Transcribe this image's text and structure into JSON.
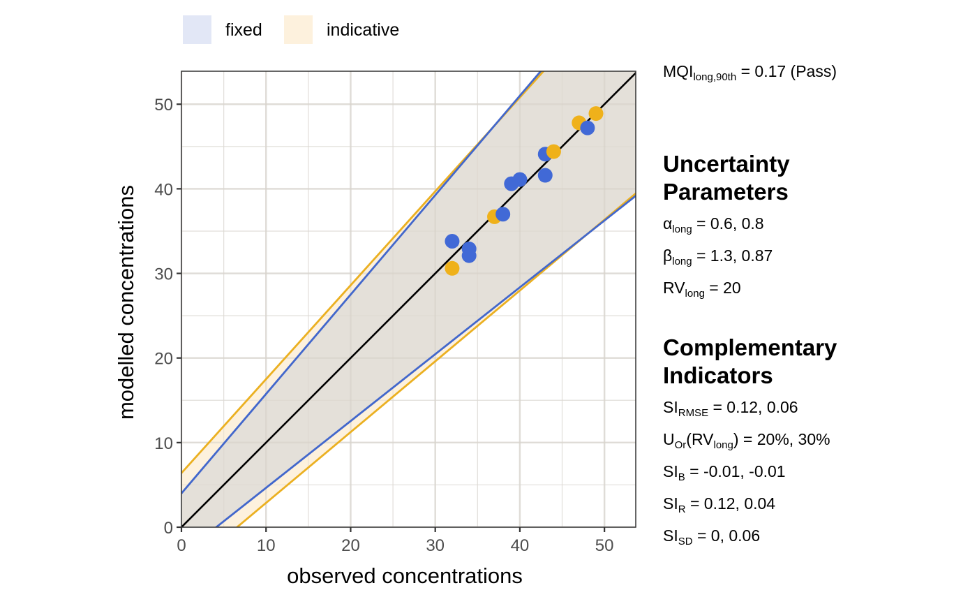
{
  "chart_data": {
    "type": "scatter",
    "title": "",
    "xlabel": "observed concentrations",
    "ylabel": "modelled concentrations",
    "xlim": [
      0,
      53.7
    ],
    "ylim": [
      0,
      53.9
    ],
    "xticks": [
      0,
      10,
      20,
      30,
      40,
      50
    ],
    "yticks": [
      0,
      10,
      20,
      30,
      40,
      50
    ],
    "grid": true,
    "legend": {
      "position": "top-left",
      "entries": [
        {
          "name": "fixed",
          "color": "#e2e7f6"
        },
        {
          "name": "indicative",
          "color": "#fdf1dd"
        }
      ]
    },
    "identity_line": {
      "color": "#000000"
    },
    "bands": [
      {
        "name": "indicative",
        "line_color": "#ebb021",
        "fill": "#fdf1dd",
        "upper_intercept": 6.4,
        "upper_slope": 1.11,
        "lower_intercept": -5.5,
        "lower_slope": 0.837
      },
      {
        "name": "fixed",
        "line_color": "#4267cc",
        "fill": "#e4e0d9",
        "upper_intercept": 4.0,
        "upper_slope": 1.175,
        "lower_intercept": -3.25,
        "lower_slope": 0.79
      }
    ],
    "series": [
      {
        "name": "fixed",
        "color": "#4169d6",
        "points": [
          [
            32,
            33.8
          ],
          [
            34,
            32.9
          ],
          [
            34,
            32.1
          ],
          [
            38,
            37.0
          ],
          [
            39,
            40.6
          ],
          [
            40,
            41.1
          ],
          [
            43,
            44.1
          ],
          [
            43,
            41.6
          ],
          [
            48,
            47.2
          ]
        ]
      },
      {
        "name": "indicative",
        "color": "#efb11a",
        "points": [
          [
            32,
            30.6
          ],
          [
            37,
            36.7
          ],
          [
            44,
            44.4
          ],
          [
            47,
            47.8
          ],
          [
            49,
            48.9
          ]
        ]
      }
    ]
  },
  "side": {
    "mqi": {
      "main": "MQI",
      "sub": "long,90th",
      "value": " = 0.17 (Pass)"
    },
    "uncertainty_title_1": "Uncertainty",
    "uncertainty_title_2": "Parameters",
    "alpha": {
      "main": "α",
      "sub": "long",
      "value": " = 0.6, 0.8"
    },
    "beta": {
      "main": "β",
      "sub": "long",
      "value": " = 1.3, 0.87"
    },
    "rv": {
      "main": "RV",
      "sub": "long",
      "value": " = 20"
    },
    "complementary_title_1": "Complementary",
    "complementary_title_2": "Indicators",
    "si_rmse": {
      "main": "SI",
      "sub": "RMSE",
      "value": " = 0.12, 0.06"
    },
    "u_or": {
      "main": "U",
      "sub": "Or",
      "mid": "(RV",
      "sub2": "long",
      "value": ") = 20%, 30%"
    },
    "si_b": {
      "main": "SI",
      "sub": "B",
      "value": " = -0.01, -0.01"
    },
    "si_r": {
      "main": "SI",
      "sub": "R",
      "value": " = 0.12, 0.04"
    },
    "si_sd": {
      "main": "SI",
      "sub": "SD",
      "value": " = 0, 0.06"
    }
  }
}
